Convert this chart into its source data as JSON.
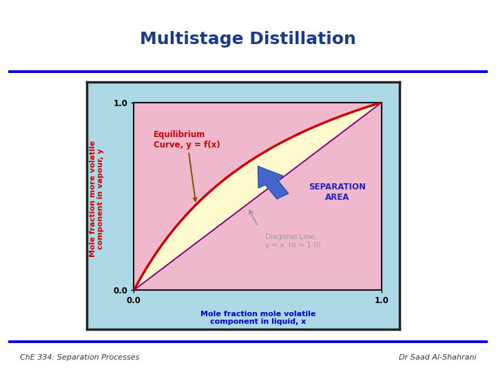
{
  "title": "Multistage Distillation",
  "title_color": "#1a3a8a",
  "title_fontsize": 18,
  "bg_color": "#ffffff",
  "slide_bg": "#ffffff",
  "header_line_color": "#0000dd",
  "footer_line_color": "#0000dd",
  "footer_left": "ChE 334: Separation Processes",
  "footer_right": "Dr Saad Al-Shahrani",
  "footer_color": "#333333",
  "footer_fontsize": 8,
  "plot_bg_outer": "#add8e6",
  "plot_bg_inner": "#f0b8cc",
  "separation_area_color": "#fffacd",
  "equilibrium_curve_color": "#cc0000",
  "diagonal_color": "#880088",
  "xlabel": "Mole fraction mole volatile\ncomponent in liquid, x",
  "ylabel": "Mole fraction more volatile\ncomponent in vapour, y",
  "xlabel_color": "#0000cc",
  "ylabel_color": "#cc0000",
  "axis_label_fontsize": 8,
  "equil_label": "Equilibrium\nCurve, y = f(x)",
  "equil_label_color": "#cc0000",
  "diag_label": "Diagonal Line,\ny = x  (α = 1.0)",
  "diag_label_color": "#999999",
  "sep_label": "SEPARATION\nAREA",
  "sep_label_color": "#2222bb",
  "arrow_color": "#4466cc",
  "alpha_vle": 2.5
}
